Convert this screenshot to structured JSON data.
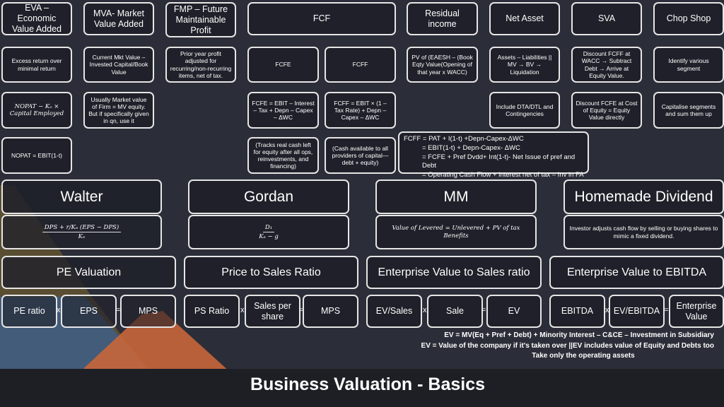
{
  "title": "Business Valuation - Basics",
  "colors": {
    "background": "#2b2e38",
    "box": "#1f2029",
    "border": "#e6e6e6",
    "deco_olive": "#6b5a34",
    "deco_blue": "#3e5f86",
    "deco_orange": "#c8663a"
  },
  "top_headers": [
    "EVA – Economic Value Added",
    "MVA- Market Value Added",
    "FMP – Future Maintainable Profit",
    "FCF",
    "Residual income",
    "Net Asset",
    "SVA",
    "Chop Shop"
  ],
  "row2": [
    "Excess return over minimal return",
    "Current Mkt Value – Invested Capital/Book Value",
    "Prior year profit adjusted for recurring/non-recurring items, net of tax.",
    "FCFE",
    "FCFF",
    "PV of (EAESH – (Book Eqty Value(Opening of that year x WACC)",
    "Assets – Liabilities || MV → BV → Liquidation",
    "Discount FCFF at WACC → Subtract Debt → Arrive at Equity Value.",
    "Identify various segment"
  ],
  "row3": {
    "eva_formula": "NOPAT  − Kₒ × Capital Employed",
    "mva_note": "Usually Market value of Firm = MV equity. But if specifically given in qn, use it",
    "fcfe_formula": "FCFE = EBIT – Interest – Tax + Depn – Capex – ΔWC",
    "fcff_formula": "FCFF = EBIT × (1 – Tax Rate) + Depn – Capex – ΔWC",
    "net_asset_note": "Include DTA/DTL and Contingencies",
    "sva_note": "Discount FCFE at Cost of Equity = Equity Value directly",
    "chop_note": "Capitalise segments and sum them up"
  },
  "row4": {
    "nopat": "NOPAT = EBIT(1-t)",
    "fcfe_note": "(Tracks real cash left for equity after all ops, reinvestments, and financing)",
    "fcff_note": "(Cash available to all providers of capital—debt + equity)",
    "fcff_lines": [
      "FCFF = PAT + I(1-t) +Depn-Capex-ΔWC",
      "= EBIT(1-t) + Depn-Capex- ΔWC",
      "= FCFE + Pref Dvdd+ Int(1-t)- Net Issue of pref and Debt",
      "= Operating Cash Flow + interest net of tax – Inv in FA"
    ]
  },
  "dividend_models": [
    {
      "name": "Walter",
      "formula_num": "DPS + r/Kₑ (EPS − DPS)",
      "formula_den": "Kₑ"
    },
    {
      "name": "Gordan",
      "formula_num": "D₁",
      "formula_den": "Kₑ − g"
    },
    {
      "name": "MM",
      "formula": "Value of Levered = Unlevered + PV of tax Benefits"
    },
    {
      "name": "Homemade Dividend",
      "formula": "Investor adjusts cash flow by selling or buying shares to mimic a fixed dividend."
    }
  ],
  "multiples": [
    {
      "name": "PE Valuation",
      "terms": [
        "PE ratio",
        "EPS",
        "MPS"
      ]
    },
    {
      "name": "Price to Sales Ratio",
      "terms": [
        "PS Ratio",
        "Sales per share",
        "MPS"
      ]
    },
    {
      "name": "Enterprise Value to Sales ratio",
      "terms": [
        "EV/Sales",
        "Sale",
        "EV"
      ]
    },
    {
      "name": "Enterprise Value to EBITDA",
      "terms": [
        "EBITDA",
        "EV/EBITDA",
        "Enterprise Value"
      ]
    }
  ],
  "ops": {
    "times": "x",
    "equals": "="
  },
  "notes": [
    "EV = MV(Eq + Pref + Debt) + Minority Interest – C&CE – Investment in Subsidiary",
    "EV = Value of the company if it's taken over ||EV includes value of Equity and Debts too",
    "Take only the operating assets"
  ]
}
